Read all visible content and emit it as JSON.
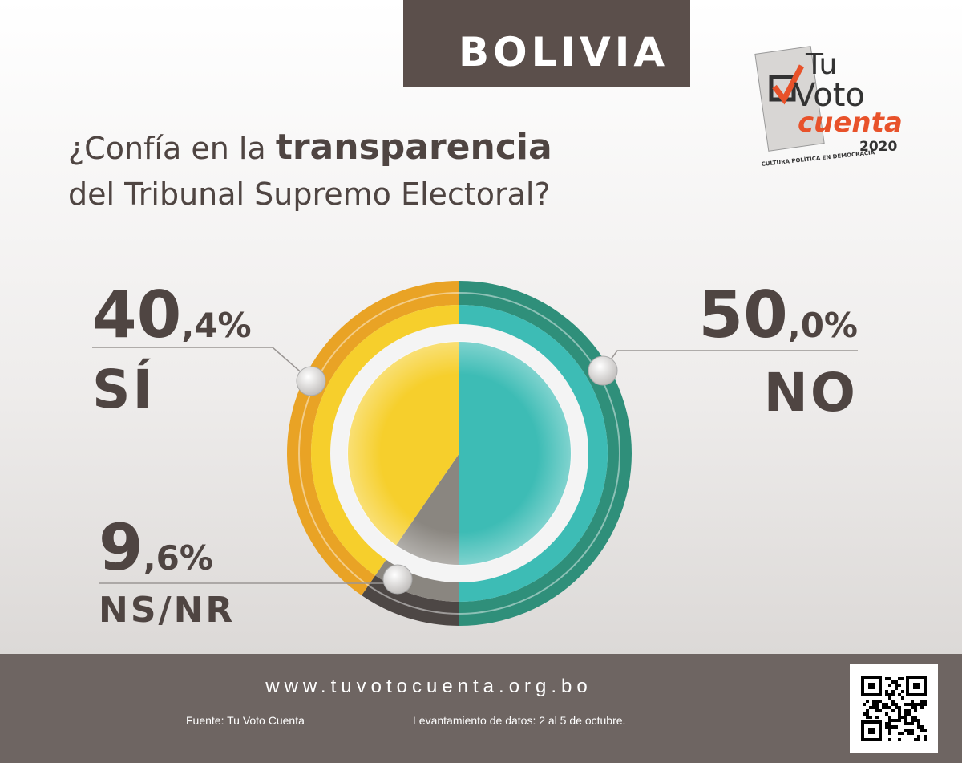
{
  "header": {
    "country": "BOLIVIA"
  },
  "logo": {
    "line1": "Tu",
    "line2": "Voto",
    "line3": "cuenta",
    "year": "2020",
    "tagline": "CULTURA POLÍTICA EN DEMOCRACIA"
  },
  "chart_data": {
    "type": "pie",
    "title_start": "¿Confía en la",
    "title_bold": "transparencia",
    "title_end": "del Tribunal Supremo Electoral?",
    "categories": [
      "NO",
      "NS/NR",
      "SÍ"
    ],
    "values": [
      50.0,
      9.6,
      40.4
    ],
    "value_labels": [
      "50,0%",
      "9,6%",
      "40,4%"
    ],
    "colors": [
      "#3dbcb5",
      "#8a8680",
      "#f6cf2c"
    ],
    "ring_colors": [
      "#2f8f7a",
      "#4d4745",
      "#e9a325"
    ]
  },
  "footer": {
    "url": "www.tuvotocuenta.org.bo",
    "source": "Fuente: Tu Voto Cuenta",
    "dates": "Levantamiento de datos: 2 al 5 de octubre."
  }
}
